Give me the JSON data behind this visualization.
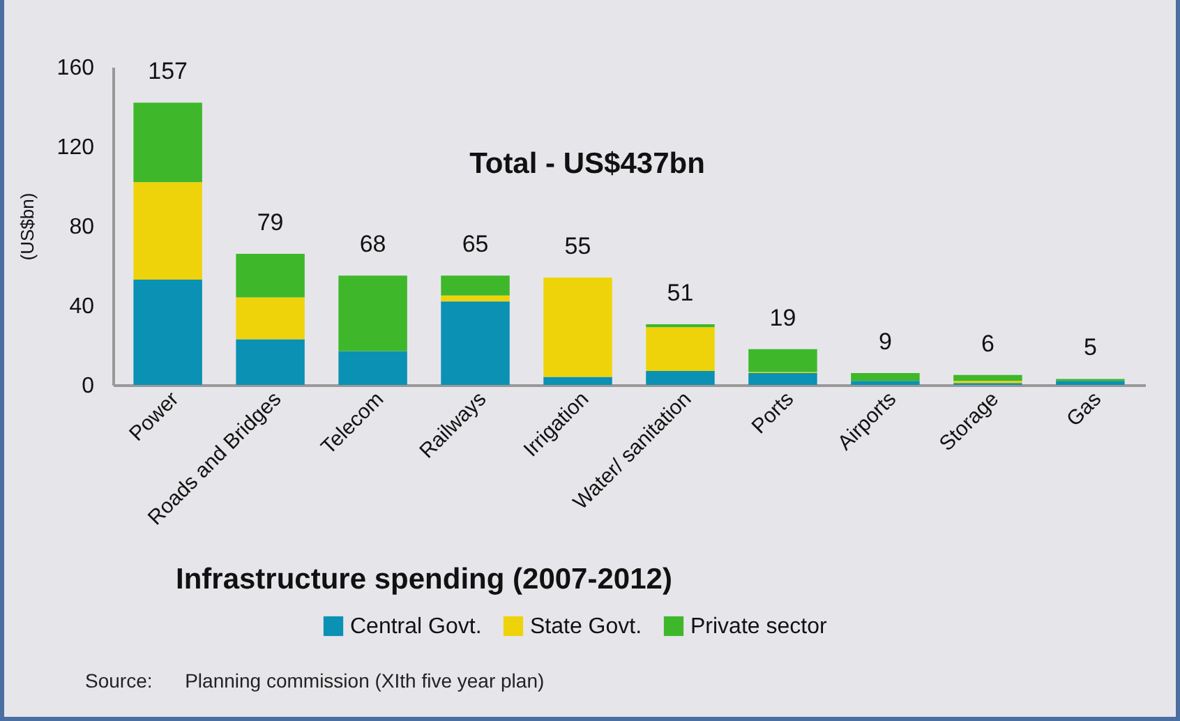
{
  "chart_data": {
    "type": "bar",
    "stacked": true,
    "title": "Infrastructure spending (2007-2012)",
    "ylabel": "(US$bn)",
    "categories": [
      "Power",
      "Roads and Bridges",
      "Telecom",
      "Railways",
      "Irrigation",
      "Water/ sanitation",
      "Ports",
      "Airports",
      "Storage",
      "Gas"
    ],
    "series": [
      {
        "name": "Central Govt.",
        "color": "#0a91b4",
        "values": [
          53,
          23,
          17,
          42,
          4,
          7,
          6,
          2,
          1,
          2
        ]
      },
      {
        "name": "State Govt.",
        "color": "#efd30a",
        "values": [
          49,
          21,
          0,
          3,
          50,
          22,
          0.5,
          0,
          1,
          0
        ]
      },
      {
        "name": "Private sector",
        "color": "#3fb72a",
        "values": [
          40,
          22,
          38,
          10,
          0,
          1.5,
          11.5,
          4,
          3,
          1
        ]
      }
    ],
    "ylim": [
      0,
      160
    ],
    "yticks": [
      0,
      40,
      80,
      120,
      160
    ],
    "grid": false,
    "legend": "bottom",
    "annotations": [
      "Total - US$437bn",
      "Source:      Planning commission (XIth five year plan)",
      {
        "text": "157",
        "x": "Power",
        "y": 142
      },
      {
        "text": "79",
        "x": "Roads and Bridges",
        "y": 66
      },
      {
        "text": "68",
        "x": "Telecom",
        "y": 55
      },
      {
        "text": "65",
        "x": "Railways",
        "y": 55
      },
      {
        "text": "55",
        "x": "Irrigation",
        "y": 54
      },
      {
        "text": "51",
        "x": "Water/ sanitation",
        "y": 30.5
      },
      {
        "text": "19",
        "x": "Ports",
        "y": 18
      },
      {
        "text": "9",
        "x": "Airports",
        "y": 6
      },
      {
        "text": "6",
        "x": "Storage",
        "y": 5
      },
      {
        "text": "5",
        "x": "Gas",
        "y": 3
      }
    ]
  }
}
